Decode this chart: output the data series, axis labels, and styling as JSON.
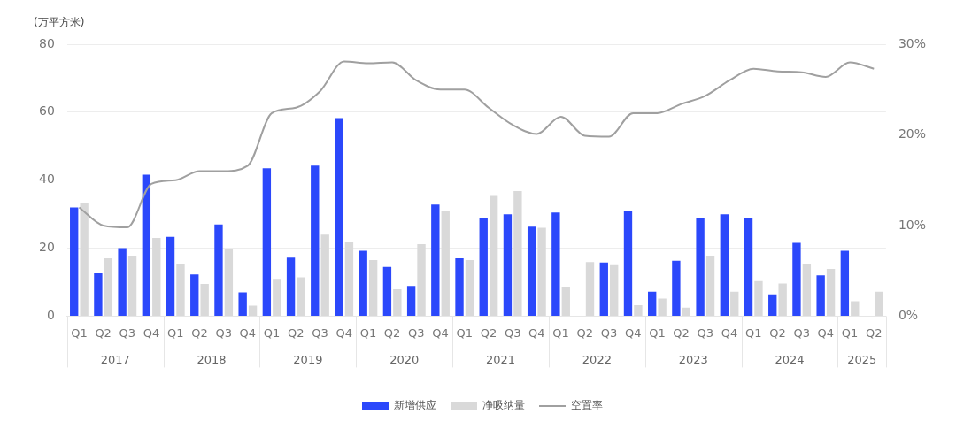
{
  "chart_data": {
    "type": "bar",
    "ylabel": "(万平方米)",
    "categories": [
      "Q1",
      "Q2",
      "Q3",
      "Q4",
      "Q1",
      "Q2",
      "Q3",
      "Q4",
      "Q1",
      "Q2",
      "Q3",
      "Q4",
      "Q1",
      "Q2",
      "Q3",
      "Q4",
      "Q1",
      "Q2",
      "Q3",
      "Q4",
      "Q1",
      "Q2",
      "Q3",
      "Q4",
      "Q1",
      "Q2",
      "Q3",
      "Q4",
      "Q1",
      "Q2",
      "Q3",
      "Q4",
      "Q1",
      "Q2"
    ],
    "annotations": [
      "2017",
      "2018",
      "2019",
      "2020",
      "2021",
      "2022",
      "2023",
      "2024",
      "2025"
    ],
    "series": [
      {
        "name": "新增供应",
        "color": "#2b48fb",
        "values": [
          32,
          12.6,
          20,
          41.6,
          23.3,
          12.3,
          27,
          7,
          43.5,
          17.2,
          44.3,
          58.3,
          19.2,
          14.5,
          8.9,
          32.8,
          17,
          29,
          30,
          26.3,
          30.5,
          null,
          15.8,
          31,
          7.2,
          16.3,
          29,
          30,
          29,
          6.4,
          21.6,
          12,
          19.2,
          null
        ]
      },
      {
        "name": "净吸纳量",
        "color": "#d9d9d9",
        "values": [
          33.2,
          17,
          17.8,
          23,
          15.2,
          9.5,
          19.8,
          3.1,
          11,
          11.4,
          24,
          21.7,
          16.5,
          7.9,
          21.2,
          31.1,
          16.5,
          35.4,
          36.8,
          26,
          8.6,
          15.9,
          15,
          3.2,
          5.2,
          2.5,
          17.8,
          7.2,
          10.3,
          9.6,
          15.3,
          13.9,
          4.4,
          7.2
        ]
      },
      {
        "name": "空置率",
        "type": "line",
        "axis": "y2",
        "color": "#a0a0a0",
        "values": [
          12,
          10,
          9.8,
          14.6,
          15,
          16,
          16,
          16.6,
          22.4,
          23,
          24.8,
          28.1,
          27.9,
          28,
          26,
          25,
          25,
          23,
          21.1,
          20.1,
          22,
          19.9,
          19.8,
          22.4,
          22.4,
          23.4,
          24.3,
          26,
          27.3,
          27,
          26.9,
          26.4,
          28,
          27.3
        ]
      }
    ],
    "ylim": [
      0,
      80
    ],
    "yticks": [
      0,
      20,
      40,
      60,
      80
    ],
    "y2lim": [
      0,
      30
    ],
    "y2ticks": [
      {
        "value": 0,
        "label": "0%"
      },
      {
        "value": 10,
        "label": "10%"
      },
      {
        "value": 20,
        "label": "20%"
      },
      {
        "value": 30,
        "label": "30%"
      }
    ],
    "grid": "y",
    "legend": "bottom",
    "marker": "none"
  }
}
